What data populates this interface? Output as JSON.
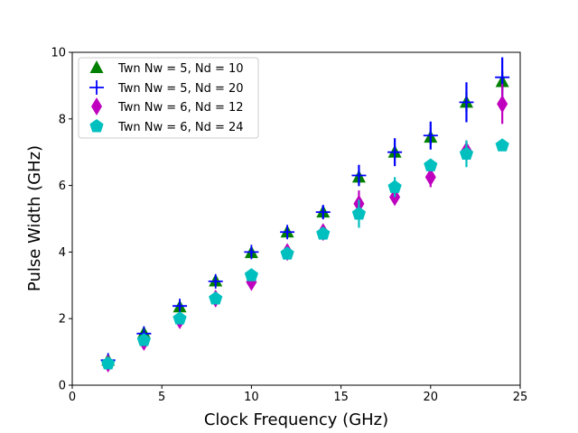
{
  "chart_data": {
    "type": "scatter",
    "title": "",
    "xlabel": "Clock Frequency (GHz)",
    "ylabel": "Pulse Width (GHz)",
    "xlim": [
      0,
      25
    ],
    "ylim": [
      0,
      10
    ],
    "xticks": [
      0,
      5,
      10,
      15,
      20,
      25
    ],
    "yticks": [
      0,
      2,
      4,
      6,
      8,
      10
    ],
    "grid": false,
    "legend_position": "upper-left",
    "series": [
      {
        "name": "Twn Nw = 5, Nd = 10",
        "marker": "triangle",
        "color": "#008000",
        "x": [
          2,
          4,
          6,
          8,
          10,
          12,
          14,
          16,
          18,
          20,
          22,
          24
        ],
        "y": [
          0.75,
          1.57,
          2.35,
          3.13,
          3.98,
          4.6,
          5.2,
          6.25,
          7.0,
          7.45,
          8.5,
          9.12
        ],
        "yerr": [
          0.05,
          0.05,
          0.05,
          0.05,
          0.08,
          0.08,
          0.15,
          0.2,
          0.2,
          0.2,
          0.3,
          0.3
        ]
      },
      {
        "name": "Twn Nw = 5, Nd = 20",
        "marker": "plus",
        "color": "#0000ff",
        "x": [
          2,
          4,
          6,
          8,
          10,
          12,
          14,
          16,
          18,
          20,
          22,
          24
        ],
        "y": [
          0.75,
          1.55,
          2.38,
          3.12,
          4.0,
          4.6,
          5.2,
          6.3,
          7.0,
          7.5,
          8.5,
          9.25
        ],
        "yerr": [
          0.1,
          0.1,
          0.12,
          0.12,
          0.12,
          0.12,
          0.2,
          0.32,
          0.42,
          0.42,
          0.6,
          0.6
        ]
      },
      {
        "name": "Twn Nw = 6, Nd = 12",
        "marker": "diamond",
        "color": "#bf00bf",
        "x": [
          2,
          4,
          6,
          8,
          10,
          12,
          14,
          16,
          18,
          20,
          22,
          24
        ],
        "y": [
          0.65,
          1.3,
          1.95,
          2.6,
          3.1,
          4.0,
          4.6,
          5.45,
          5.65,
          6.25,
          7.05,
          8.45
        ],
        "yerr": [
          0.1,
          0.1,
          0.1,
          0.1,
          0.12,
          0.12,
          0.12,
          0.4,
          0.2,
          0.3,
          0.3,
          0.6
        ]
      },
      {
        "name": "Twn Nw = 6, Nd = 24",
        "marker": "pentagon",
        "color": "#00bfbf",
        "x": [
          2,
          4,
          6,
          8,
          10,
          12,
          14,
          16,
          18,
          20,
          22,
          24
        ],
        "y": [
          0.65,
          1.35,
          2.0,
          2.6,
          3.3,
          3.95,
          4.55,
          5.15,
          5.95,
          6.6,
          6.95,
          7.2
        ],
        "yerr": [
          0.05,
          0.05,
          0.05,
          0.05,
          0.05,
          0.1,
          0.1,
          0.42,
          0.3,
          0.1,
          0.4,
          0.15
        ]
      }
    ]
  }
}
